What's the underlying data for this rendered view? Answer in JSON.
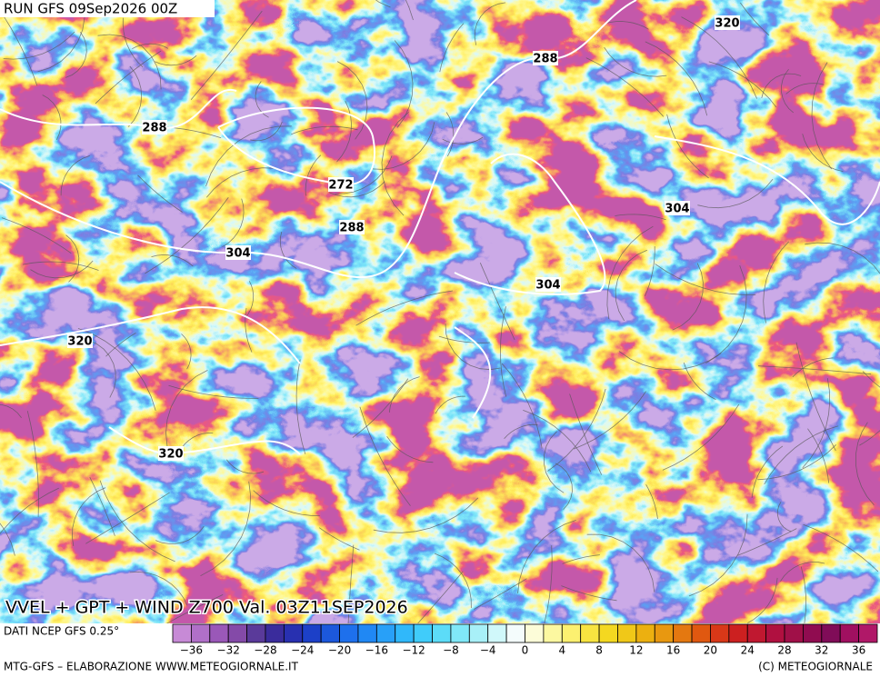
{
  "header": {
    "run": "RUN GFS 09Sep2026 00Z"
  },
  "contour_labels": [
    "288",
    "272",
    "288",
    "304",
    "320",
    "320",
    "288",
    "320",
    "304",
    "304"
  ],
  "title": "VVEL + GPT + WIND Z700 Val. 03Z11SEP2026",
  "source": "DATI NCEP GFS 0.25°",
  "colorbar": {
    "labels": [
      "−36",
      "−32",
      "−28",
      "−24",
      "−20",
      "−16",
      "−12",
      "−8",
      "−4",
      "0",
      "4",
      "8",
      "12",
      "16",
      "20",
      "24",
      "28",
      "32",
      "36"
    ],
    "colors": [
      "#c78ad6",
      "#b070c8",
      "#9a58b8",
      "#844aa8",
      "#5a3a9a",
      "#3a2c9c",
      "#2830b0",
      "#1c40c8",
      "#1c58dc",
      "#1e70ec",
      "#2088f4",
      "#28a0f8",
      "#30b8fa",
      "#40ccfa",
      "#5cdcf8",
      "#80e8f8",
      "#a8f0f8",
      "#d0f8fa",
      "#f4fcfc",
      "#fcfcd8",
      "#fcf8a0",
      "#fcf070",
      "#f8e440",
      "#f4d820",
      "#f0c818",
      "#ecb010",
      "#e89810",
      "#e47810",
      "#e05810",
      "#d83818",
      "#cc2020",
      "#c01830",
      "#b01040",
      "#a01048",
      "#900c50",
      "#800c58",
      "#a01060",
      "#b01868"
    ]
  },
  "footer": {
    "left": "MTG-GFS – ELABORAZIONE WWW.METEOGIORNALE.IT",
    "right": "(C) METEOGIORNALE"
  }
}
